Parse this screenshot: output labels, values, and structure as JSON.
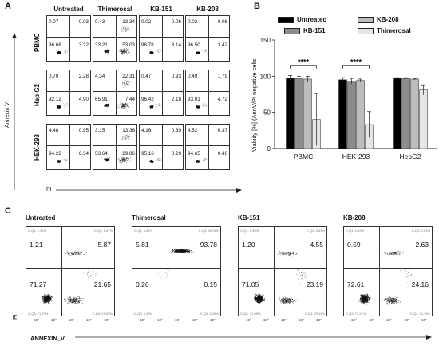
{
  "panel_a": {
    "letter": "A",
    "columns": [
      "Untreated",
      "Thimerosal",
      "KB-151",
      "KB-208"
    ],
    "rows": [
      "PBMC",
      "Hep G2",
      "HEK-293"
    ],
    "quadrants": [
      [
        [
          "0.07",
          "0.03",
          "96.68",
          "3.22"
        ],
        [
          "0.43",
          "13.34",
          "33.21",
          "53.03"
        ],
        [
          "0.02",
          "0.06",
          "96.78",
          "3.14"
        ],
        [
          "0.02",
          "0.06",
          "96.50",
          "3.42"
        ]
      ],
      [
        [
          "0.70",
          "2.28",
          "92.12",
          "4.90"
        ],
        [
          "4.34",
          "22.31",
          "65.91",
          "7.44"
        ],
        [
          "0.47",
          "0.93",
          "96.42",
          "2.18"
        ],
        [
          "0.49",
          "1.79",
          "93.01",
          "4.72"
        ]
      ],
      [
        [
          "4.48",
          "0.95",
          "94.23",
          "0.34"
        ],
        [
          "3.15",
          "13.36",
          "53.64",
          "29.86"
        ],
        [
          "4.16",
          "0.39",
          "95.16",
          "0.29"
        ],
        [
          "4.52",
          "0.37",
          "94.65",
          "0.46"
        ]
      ]
    ],
    "y_axis_label": "Annexin V",
    "x_axis_label": "PI"
  },
  "panel_b": {
    "letter": "B",
    "ylabel": "Viabiity [%] (AnnV/PI negative cells",
    "significance": "****",
    "colors": [
      "#000000",
      "#8c8c8c",
      "#bdbdbd",
      "#e6e6e6"
    ]
  },
  "chart_data": {
    "type": "bar",
    "categories": [
      "PBMC",
      "HEK-293",
      "HepG2"
    ],
    "series": [
      {
        "name": "Untreated",
        "values": [
          97,
          95,
          97
        ],
        "errors": [
          4,
          3,
          1
        ]
      },
      {
        "name": "KB-151",
        "values": [
          97,
          93,
          97
        ],
        "errors": [
          3,
          4,
          1
        ]
      },
      {
        "name": "KB-208",
        "values": [
          96,
          94,
          96
        ],
        "errors": [
          4,
          2,
          1
        ]
      },
      {
        "name": "Thimerosal",
        "values": [
          40,
          33,
          81
        ],
        "errors": [
          36,
          18,
          7
        ]
      }
    ],
    "ylim": [
      0,
      150
    ],
    "yticks": [
      0,
      50,
      100,
      150
    ],
    "legend_order": [
      "Untreated",
      "KB-208",
      "KB-151",
      "Thimerosal"
    ],
    "ylabel": "Viabiity [%] (AnnV/PI negative cells"
  },
  "panel_c": {
    "letter": "C",
    "plots": [
      {
        "title": "Untreated",
        "q1": "1.21",
        "q2": "5.87",
        "q3": "71.27",
        "q4": "21.65",
        "q1_lab": "C-Q1: 1.21%",
        "q2_lab": "C-Q2: 5.87%",
        "q3_lab": "C-Q3: 71.27%",
        "q4_lab": "C-Q4: 21.65%"
      },
      {
        "title": "Thimerosal",
        "q1": "5.81",
        "q2": "93.78",
        "q3": "0.26",
        "q4": "0.15",
        "q1_lab": "C-Q1: 5.81%",
        "q2_lab": "C-Q2: 93.78%",
        "q3_lab": "C-Q3: 0.26%",
        "q4_lab": "C-Q4: 0.15%"
      },
      {
        "title": "KB-151",
        "q1": "1.20",
        "q2": "4.55",
        "q3": "71.05",
        "q4": "23.19",
        "q1_lab": "C-Q1: 1.20%",
        "q2_lab": "C-Q2: 4.55%",
        "q3_lab": "C-Q3: 71.05%",
        "q4_lab": "C-Q4: 23.19%"
      },
      {
        "title": "KB-208",
        "q1": "0.59",
        "q2": "2.63",
        "q3": "72.61",
        "q4": "24.16",
        "q1_lab": "C-Q1: 0.59%",
        "q2_lab": "C-Q2: 2.63%",
        "q3_lab": "C-Q3: 72.61%",
        "q4_lab": "C-Q4: 24.16%"
      }
    ],
    "y_axis_label": "PI",
    "x_axis_label": "ANNEXIN_V"
  }
}
